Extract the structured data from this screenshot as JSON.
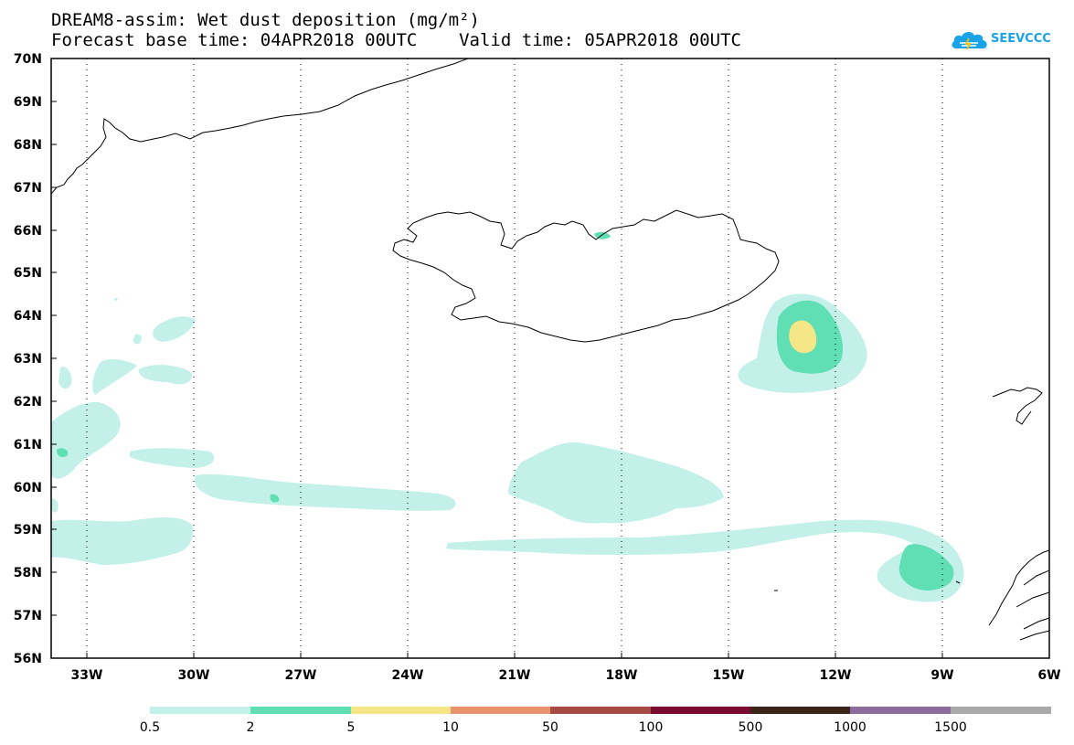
{
  "header": {
    "title_line1": "DREAM8-assim: Wet dust deposition (mg/m²)",
    "title_line2": "Forecast base time: 04APR2018 00UTC    Valid time: 05APR2018 00UTC"
  },
  "logo": {
    "text": "SEEVCCC",
    "color": "#1aa3e8"
  },
  "map": {
    "lat_labels": [
      "70N",
      "69N",
      "68N",
      "67N",
      "66N",
      "65N",
      "64N",
      "63N",
      "62N",
      "61N",
      "60N",
      "59N",
      "58N",
      "57N",
      "56N"
    ],
    "lon_labels": [
      "33W",
      "30W",
      "27W",
      "24W",
      "21W",
      "18W",
      "15W",
      "12W",
      "9W",
      "6W"
    ],
    "extent": {
      "lon_min": -34,
      "lon_max": -6,
      "lat_min": 56,
      "lat_max": 70
    }
  },
  "colorbar": {
    "thresholds": [
      "0.5",
      "2",
      "5",
      "10",
      "50",
      "100",
      "500",
      "1000",
      "1500"
    ],
    "colors": [
      "#c4f0ea",
      "#5fdfb3",
      "#f5e787",
      "#e8926e",
      "#a64b44",
      "#7a0a2e",
      "#3b2418",
      "#8c6c9e",
      "#a9a9a9"
    ]
  }
}
